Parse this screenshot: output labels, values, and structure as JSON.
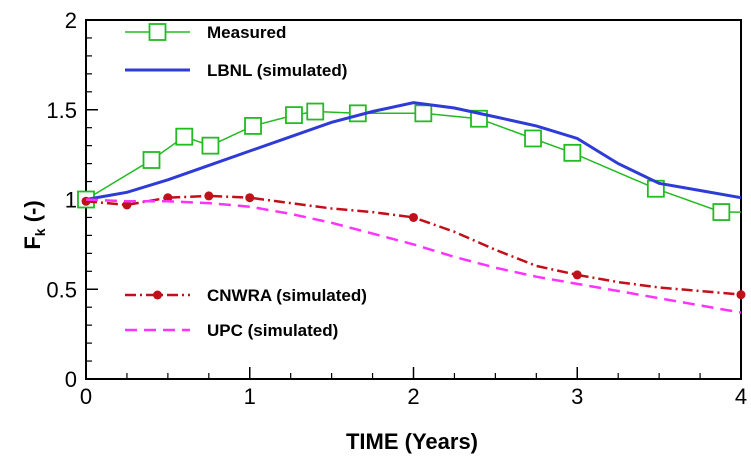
{
  "chart_data": {
    "type": "line",
    "xlabel": "TIME (Years)",
    "ylabel_main": "F",
    "ylabel_sub": "k",
    "ylabel_suffix": " (-)",
    "xlim": [
      0,
      4
    ],
    "ylim": [
      0,
      2
    ],
    "xticks": [
      {
        "value": 0,
        "label": "0"
      },
      {
        "value": 1,
        "label": "1"
      },
      {
        "value": 2,
        "label": "2"
      },
      {
        "value": 3,
        "label": "3"
      },
      {
        "value": 4,
        "label": "4"
      }
    ],
    "yticks": [
      {
        "value": 0,
        "label": "0"
      },
      {
        "value": 0.5,
        "label": "0.5"
      },
      {
        "value": 1,
        "label": "1"
      },
      {
        "value": 1.5,
        "label": "1.5"
      },
      {
        "value": 2,
        "label": "2"
      }
    ],
    "grid": false,
    "series": [
      {
        "name": "Measured",
        "color": "#22bb22",
        "style": "solid",
        "marker": "open-square",
        "x": [
          0,
          0.4,
          0.6,
          0.76,
          1.02,
          1.27,
          1.4,
          1.66,
          2.06,
          2.4,
          2.73,
          2.97,
          3.48,
          3.88,
          4.0
        ],
        "y": [
          1.0,
          1.22,
          1.35,
          1.3,
          1.41,
          1.47,
          1.49,
          1.48,
          1.48,
          1.45,
          1.34,
          1.26,
          1.06,
          0.93,
          0.93
        ]
      },
      {
        "name": "LBNL (simulated)",
        "color": "#2e3bd6",
        "style": "solid",
        "marker": "none",
        "x": [
          0,
          0.25,
          0.5,
          0.75,
          1.0,
          1.25,
          1.5,
          1.75,
          2.0,
          2.25,
          2.5,
          2.75,
          3.0,
          3.25,
          3.5,
          3.75,
          4.0
        ],
        "y": [
          1.0,
          1.04,
          1.11,
          1.19,
          1.27,
          1.35,
          1.43,
          1.49,
          1.54,
          1.51,
          1.46,
          1.41,
          1.34,
          1.2,
          1.09,
          1.05,
          1.01
        ]
      },
      {
        "name": "CNWRA (simulated)",
        "color": "#c0101a",
        "style": "dashdot",
        "marker": "filled-circle",
        "marker_x": [
          0,
          0.25,
          0.5,
          0.75,
          1.0,
          2.0,
          3.0,
          4.0
        ],
        "marker_y": [
          0.99,
          0.97,
          1.01,
          1.02,
          1.01,
          0.9,
          0.58,
          0.47
        ],
        "x": [
          0,
          0.25,
          0.5,
          0.75,
          1.0,
          1.25,
          1.5,
          1.75,
          2.0,
          2.25,
          2.5,
          2.75,
          3.0,
          3.25,
          3.5,
          3.75,
          4.0
        ],
        "y": [
          0.99,
          0.97,
          1.01,
          1.02,
          1.01,
          0.98,
          0.95,
          0.93,
          0.9,
          0.82,
          0.72,
          0.63,
          0.58,
          0.54,
          0.51,
          0.49,
          0.47
        ]
      },
      {
        "name": "UPC (simulated)",
        "color": "#ff33ff",
        "style": "dashed",
        "marker": "none",
        "x": [
          0,
          0.25,
          0.5,
          0.75,
          1.0,
          1.25,
          1.5,
          1.75,
          2.0,
          2.25,
          2.5,
          2.75,
          3.0,
          3.25,
          3.5,
          3.75,
          4.0
        ],
        "y": [
          1.0,
          0.99,
          0.99,
          0.98,
          0.96,
          0.92,
          0.87,
          0.81,
          0.75,
          0.68,
          0.62,
          0.57,
          0.53,
          0.49,
          0.45,
          0.41,
          0.37
        ]
      }
    ]
  }
}
